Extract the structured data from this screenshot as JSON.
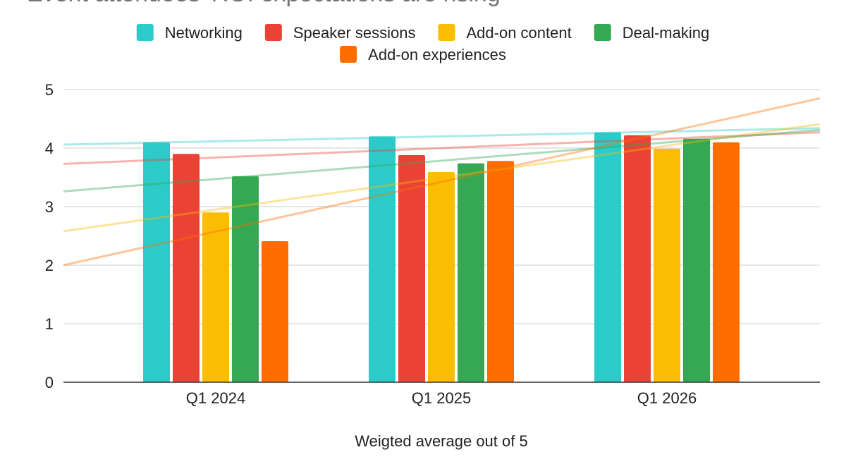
{
  "chart_data": {
    "type": "bar",
    "title": "Event attendees' ROI expectations are rising",
    "categories": [
      "Q1 2024",
      "Q1 2025",
      "Q1 2026"
    ],
    "series": [
      {
        "name": "Networking",
        "color": "#2ccbc9",
        "values": [
          4.1,
          4.2,
          4.27
        ]
      },
      {
        "name": "Speaker sessions",
        "color": "#ea4335",
        "values": [
          3.9,
          3.88,
          4.22
        ]
      },
      {
        "name": "Add-on content",
        "color": "#fbbc04",
        "values": [
          2.9,
          3.59,
          3.99
        ]
      },
      {
        "name": "Deal-making",
        "color": "#34a853",
        "values": [
          3.52,
          3.74,
          4.16
        ]
      },
      {
        "name": "Add-on experiences",
        "color": "#ff6d01",
        "values": [
          2.41,
          3.78,
          4.1
        ]
      }
    ],
    "trendlines": [
      {
        "series": "Networking",
        "start": 4.06,
        "end": 4.34
      },
      {
        "series": "Speaker sessions",
        "start": 3.73,
        "end": 4.27
      },
      {
        "series": "Add-on content",
        "start": 2.58,
        "end": 4.41
      },
      {
        "series": "Deal-making",
        "start": 3.26,
        "end": 4.31
      },
      {
        "series": "Add-on experiences",
        "start": 2.0,
        "end": 4.85
      }
    ],
    "xlabel": "Weigted average out of 5",
    "ylabel": "",
    "ylim": [
      0,
      5
    ],
    "yticks": [
      0,
      1,
      2,
      3,
      4,
      5
    ],
    "grid": true,
    "legend_position": "top-center"
  }
}
